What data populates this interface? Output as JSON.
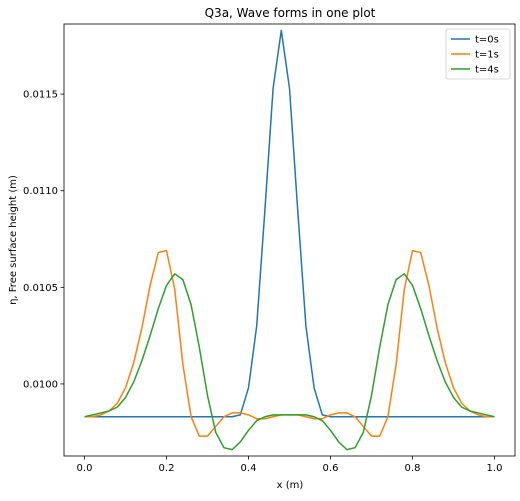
{
  "chart_data": {
    "type": "line",
    "title": "Q3a, Wave forms in one plot",
    "xlabel": "x (m)",
    "ylabel": "η, Free surface height (m)",
    "xlim": [
      -0.05,
      1.05
    ],
    "ylim": [
      0.009627,
      0.011863
    ],
    "xticks": [
      0.0,
      0.2,
      0.4,
      0.6,
      0.8,
      1.0
    ],
    "xtick_labels": [
      "0.0",
      "0.2",
      "0.4",
      "0.6",
      "0.8",
      "1.0"
    ],
    "yticks": [
      0.01,
      0.0105,
      0.011,
      0.0115
    ],
    "ytick_labels": [
      "0.0100",
      "0.0105",
      "0.0110",
      "0.0115"
    ],
    "grid": false,
    "legend_position": "upper-right",
    "colors": [
      "#1f77b4",
      "#ff7f0e",
      "#2ca02c"
    ],
    "series": [
      {
        "name": "t=0s",
        "x": [
          0.0,
          0.02,
          0.04,
          0.06,
          0.08,
          0.1,
          0.12,
          0.14,
          0.16,
          0.18,
          0.2,
          0.22,
          0.24,
          0.26,
          0.28,
          0.3,
          0.32,
          0.34,
          0.36,
          0.38,
          0.4,
          0.42,
          0.44,
          0.46,
          0.48,
          0.5,
          0.52,
          0.54,
          0.56,
          0.58,
          0.6,
          0.62,
          0.64,
          0.66,
          0.68,
          0.7,
          0.72,
          0.74,
          0.76,
          0.78,
          0.8,
          0.82,
          0.84,
          0.86,
          0.88,
          0.9,
          0.92,
          0.94,
          0.96,
          0.98,
          1.0
        ],
        "y": [
          0.00983,
          0.00983,
          0.00983,
          0.00983,
          0.00983,
          0.00983,
          0.00983,
          0.00983,
          0.00983,
          0.00983,
          0.00983,
          0.00983,
          0.00983,
          0.00983,
          0.00983,
          0.00983,
          0.00983,
          0.00983,
          0.00983,
          0.00984,
          0.00998,
          0.0103,
          0.0109,
          0.01153,
          0.01183,
          0.01153,
          0.0109,
          0.0103,
          0.00998,
          0.00984,
          0.00983,
          0.00983,
          0.00983,
          0.00983,
          0.00983,
          0.00983,
          0.00983,
          0.00983,
          0.00983,
          0.00983,
          0.00983,
          0.00983,
          0.00983,
          0.00983,
          0.00983,
          0.00983,
          0.00983,
          0.00983,
          0.00983,
          0.00983,
          0.00983
        ]
      },
      {
        "name": "t=1s",
        "x": [
          0.0,
          0.02,
          0.04,
          0.06,
          0.08,
          0.1,
          0.12,
          0.14,
          0.16,
          0.18,
          0.2,
          0.22,
          0.24,
          0.26,
          0.28,
          0.3,
          0.32,
          0.34,
          0.36,
          0.38,
          0.4,
          0.42,
          0.44,
          0.46,
          0.48,
          0.5,
          0.52,
          0.54,
          0.56,
          0.58,
          0.6,
          0.62,
          0.64,
          0.66,
          0.68,
          0.7,
          0.72,
          0.74,
          0.76,
          0.78,
          0.8,
          0.82,
          0.84,
          0.86,
          0.88,
          0.9,
          0.92,
          0.94,
          0.96,
          0.98,
          1.0
        ],
        "y": [
          0.00983,
          0.00983,
          0.00984,
          0.00986,
          0.0099,
          0.00998,
          0.01011,
          0.01029,
          0.01051,
          0.01068,
          0.01069,
          0.01049,
          0.0101,
          0.00983,
          0.00973,
          0.00973,
          0.00978,
          0.00983,
          0.00985,
          0.00985,
          0.00984,
          0.00982,
          0.00982,
          0.00983,
          0.00984,
          0.00984,
          0.00984,
          0.00983,
          0.00982,
          0.00982,
          0.00984,
          0.00985,
          0.00985,
          0.00983,
          0.00978,
          0.00973,
          0.00973,
          0.00983,
          0.0101,
          0.01049,
          0.01069,
          0.01068,
          0.01051,
          0.01029,
          0.01011,
          0.00998,
          0.0099,
          0.00986,
          0.00984,
          0.00983,
          0.00983
        ]
      },
      {
        "name": "t=4s",
        "x": [
          0.0,
          0.02,
          0.04,
          0.06,
          0.08,
          0.1,
          0.12,
          0.14,
          0.16,
          0.18,
          0.2,
          0.22,
          0.24,
          0.26,
          0.28,
          0.3,
          0.32,
          0.34,
          0.36,
          0.38,
          0.4,
          0.42,
          0.44,
          0.46,
          0.48,
          0.5,
          0.52,
          0.54,
          0.56,
          0.58,
          0.6,
          0.62,
          0.64,
          0.66,
          0.68,
          0.7,
          0.72,
          0.74,
          0.76,
          0.78,
          0.8,
          0.82,
          0.84,
          0.86,
          0.88,
          0.9,
          0.92,
          0.94,
          0.96,
          0.98,
          1.0
        ],
        "y": [
          0.00983,
          0.00984,
          0.00985,
          0.00986,
          0.00988,
          0.00993,
          0.01001,
          0.01012,
          0.01025,
          0.01039,
          0.01051,
          0.01057,
          0.01054,
          0.01041,
          0.01019,
          0.00994,
          0.00975,
          0.00967,
          0.00966,
          0.0097,
          0.00976,
          0.00981,
          0.00983,
          0.00984,
          0.00984,
          0.00984,
          0.00984,
          0.00984,
          0.00983,
          0.00981,
          0.00976,
          0.0097,
          0.00966,
          0.00967,
          0.00975,
          0.00994,
          0.01019,
          0.01041,
          0.01054,
          0.01057,
          0.01051,
          0.01039,
          0.01025,
          0.01012,
          0.01001,
          0.00993,
          0.00988,
          0.00986,
          0.00985,
          0.00984,
          0.00983
        ]
      }
    ]
  }
}
